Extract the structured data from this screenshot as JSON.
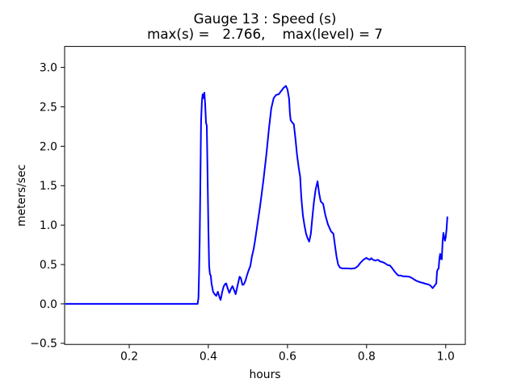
{
  "chart_data": {
    "type": "line",
    "title": "Gauge 13 : Speed (s)",
    "subtitle": "max(s) =   2.766,    max(level) = 7",
    "xlabel": "hours",
    "ylabel": "meters/sec",
    "max_s": 2.766,
    "max_level": 7,
    "xlim": [
      0.0367,
      1.0494
    ],
    "ylim": [
      -0.514,
      3.266
    ],
    "xticks": [
      0.2,
      0.4,
      0.6,
      0.8,
      1.0
    ],
    "xtick_labels": [
      "0.2",
      "0.4",
      "0.6",
      "0.8",
      "1.0"
    ],
    "yticks": [
      -0.5,
      0.0,
      0.5,
      1.0,
      1.5,
      2.0,
      2.5,
      3.0
    ],
    "ytick_labels": [
      "−0.5",
      "0.0",
      "0.5",
      "1.0",
      "1.5",
      "2.0",
      "2.5",
      "3.0"
    ],
    "grid": false,
    "legend": null,
    "line_color": "#0000ff",
    "line_width": 2,
    "series": [
      {
        "name": "speed",
        "points": [
          [
            0.04,
            0.0
          ],
          [
            0.373,
            0.0
          ],
          [
            0.375,
            0.08
          ],
          [
            0.3765,
            0.38
          ],
          [
            0.378,
            0.81
          ],
          [
            0.38,
            1.6
          ],
          [
            0.3816,
            2.32
          ],
          [
            0.3837,
            2.58
          ],
          [
            0.3857,
            2.66
          ],
          [
            0.3878,
            2.61
          ],
          [
            0.39,
            2.68
          ],
          [
            0.392,
            2.53
          ],
          [
            0.394,
            2.3
          ],
          [
            0.396,
            2.26
          ],
          [
            0.398,
            1.61
          ],
          [
            0.4,
            0.99
          ],
          [
            0.402,
            0.48
          ],
          [
            0.404,
            0.378
          ],
          [
            0.406,
            0.358
          ],
          [
            0.408,
            0.256
          ],
          [
            0.412,
            0.154
          ],
          [
            0.416,
            0.123
          ],
          [
            0.42,
            0.102
          ],
          [
            0.424,
            0.154
          ],
          [
            0.429,
            0.072
          ],
          [
            0.431,
            0.051
          ],
          [
            0.435,
            0.154
          ],
          [
            0.439,
            0.225
          ],
          [
            0.443,
            0.256
          ],
          [
            0.445,
            0.259
          ],
          [
            0.449,
            0.195
          ],
          [
            0.453,
            0.14
          ],
          [
            0.457,
            0.19
          ],
          [
            0.461,
            0.225
          ],
          [
            0.465,
            0.175
          ],
          [
            0.469,
            0.123
          ],
          [
            0.473,
            0.215
          ],
          [
            0.479,
            0.345
          ],
          [
            0.482,
            0.33
          ],
          [
            0.486,
            0.242
          ],
          [
            0.49,
            0.25
          ],
          [
            0.494,
            0.3
          ],
          [
            0.498,
            0.368
          ],
          [
            0.502,
            0.43
          ],
          [
            0.506,
            0.48
          ],
          [
            0.51,
            0.6
          ],
          [
            0.514,
            0.686
          ],
          [
            0.518,
            0.8
          ],
          [
            0.522,
            0.94
          ],
          [
            0.531,
            1.25
          ],
          [
            0.539,
            1.56
          ],
          [
            0.547,
            1.91
          ],
          [
            0.553,
            2.22
          ],
          [
            0.559,
            2.48
          ],
          [
            0.565,
            2.61
          ],
          [
            0.571,
            2.65
          ],
          [
            0.578,
            2.66
          ],
          [
            0.584,
            2.7
          ],
          [
            0.59,
            2.74
          ],
          [
            0.596,
            2.766
          ],
          [
            0.6,
            2.72
          ],
          [
            0.604,
            2.6
          ],
          [
            0.606,
            2.43
          ],
          [
            0.608,
            2.33
          ],
          [
            0.612,
            2.3
          ],
          [
            0.616,
            2.28
          ],
          [
            0.62,
            2.1
          ],
          [
            0.624,
            1.9
          ],
          [
            0.628,
            1.74
          ],
          [
            0.632,
            1.61
          ],
          [
            0.635,
            1.35
          ],
          [
            0.639,
            1.12
          ],
          [
            0.643,
            0.99
          ],
          [
            0.647,
            0.89
          ],
          [
            0.651,
            0.83
          ],
          [
            0.655,
            0.79
          ],
          [
            0.659,
            0.89
          ],
          [
            0.663,
            1.1
          ],
          [
            0.667,
            1.3
          ],
          [
            0.671,
            1.45
          ],
          [
            0.676,
            1.556
          ],
          [
            0.68,
            1.4
          ],
          [
            0.684,
            1.3
          ],
          [
            0.69,
            1.27
          ],
          [
            0.696,
            1.12
          ],
          [
            0.702,
            1.01
          ],
          [
            0.71,
            0.92
          ],
          [
            0.716,
            0.89
          ],
          [
            0.72,
            0.74
          ],
          [
            0.724,
            0.6
          ],
          [
            0.728,
            0.5
          ],
          [
            0.733,
            0.46
          ],
          [
            0.739,
            0.45
          ],
          [
            0.751,
            0.45
          ],
          [
            0.761,
            0.447
          ],
          [
            0.771,
            0.453
          ],
          [
            0.778,
            0.48
          ],
          [
            0.784,
            0.52
          ],
          [
            0.792,
            0.56
          ],
          [
            0.799,
            0.583
          ],
          [
            0.804,
            0.57
          ],
          [
            0.808,
            0.56
          ],
          [
            0.812,
            0.58
          ],
          [
            0.816,
            0.56
          ],
          [
            0.822,
            0.55
          ],
          [
            0.829,
            0.56
          ],
          [
            0.833,
            0.54
          ],
          [
            0.839,
            0.532
          ],
          [
            0.845,
            0.52
          ],
          [
            0.851,
            0.5
          ],
          [
            0.855,
            0.49
          ],
          [
            0.859,
            0.488
          ],
          [
            0.865,
            0.45
          ],
          [
            0.871,
            0.41
          ],
          [
            0.876,
            0.38
          ],
          [
            0.88,
            0.361
          ],
          [
            0.886,
            0.36
          ],
          [
            0.892,
            0.35
          ],
          [
            0.9,
            0.35
          ],
          [
            0.908,
            0.345
          ],
          [
            0.914,
            0.33
          ],
          [
            0.92,
            0.31
          ],
          [
            0.927,
            0.29
          ],
          [
            0.935,
            0.276
          ],
          [
            0.943,
            0.265
          ],
          [
            0.949,
            0.255
          ],
          [
            0.955,
            0.249
          ],
          [
            0.961,
            0.235
          ],
          [
            0.967,
            0.2
          ],
          [
            0.973,
            0.24
          ],
          [
            0.976,
            0.26
          ],
          [
            0.978,
            0.41
          ],
          [
            0.98,
            0.44
          ],
          [
            0.982,
            0.45
          ],
          [
            0.984,
            0.58
          ],
          [
            0.986,
            0.635
          ],
          [
            0.988,
            0.57
          ],
          [
            0.99,
            0.566
          ],
          [
            0.992,
            0.79
          ],
          [
            0.994,
            0.9
          ],
          [
            0.996,
            0.85
          ],
          [
            0.998,
            0.8
          ],
          [
            1.0,
            0.85
          ],
          [
            1.002,
            0.95
          ],
          [
            1.004,
            1.1
          ]
        ]
      }
    ]
  }
}
